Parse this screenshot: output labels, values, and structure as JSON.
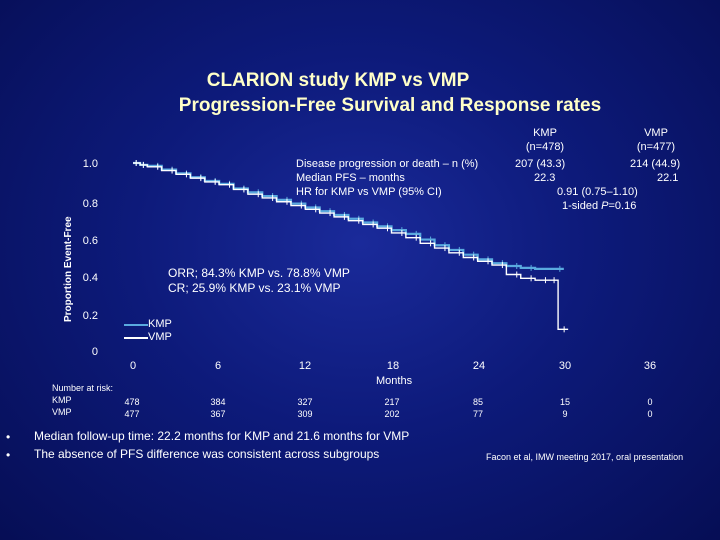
{
  "title_line1": "CLARION study KMP vs VMP",
  "title_line2": "Progression-Free Survival and Response rates",
  "table": {
    "kmp_header": "KMP",
    "kmp_n": "(n=478)",
    "vmp_header": "VMP",
    "vmp_n": "(n=477)",
    "row1_label": "Disease progression or death – n (%)",
    "row1_kmp": "207 (43.3)",
    "row1_vmp": "214 (44.9)",
    "row2_label": "Median PFS – months",
    "row2_kmp": "22.3",
    "row2_vmp": "22.1",
    "row3_label": "HR for KMP vs VMP (95% CI)",
    "row3_value": "0.91 (0.75–1.10)",
    "row4_pre": "1-sided ",
    "row4_p": "P",
    "row4_post": "=0.16"
  },
  "orr_text": "ORR; 84.3% KMP vs. 78.8% VMP",
  "cr_text": "CR; 25.9% KMP vs. 23.1% VMP",
  "risk": {
    "label": "Number at risk:",
    "kmp_label": "KMP",
    "vmp_label": "VMP",
    "kmp": [
      "478",
      "384",
      "327",
      "217",
      "85",
      "15",
      "0"
    ],
    "vmp": [
      "477",
      "367",
      "309",
      "202",
      "77",
      "9",
      "0"
    ]
  },
  "bullets": [
    "Median follow-up time: 22.2 months for KMP and 21.6 months  for VMP",
    "The absence of PFS difference was consistent across subgroups"
  ],
  "bullet_symbol": "•",
  "citation": "Facon et al, IMW meeting 2017, oral presentation",
  "colors": {
    "kmp": "#5aaadf",
    "vmp": "#ffffff",
    "title": "#ffffc8"
  },
  "chart_data": {
    "type": "line",
    "title": "",
    "xlabel": "Months",
    "ylabel": "Proportion Event-Free",
    "xlim": [
      0,
      36
    ],
    "ylim": [
      0,
      1.0
    ],
    "x_ticks": [
      0,
      6,
      12,
      18,
      24,
      30,
      36
    ],
    "y_ticks": [
      0,
      0.2,
      0.4,
      0.6,
      0.8,
      1.0
    ],
    "y_tick_labels": [
      "0",
      "0.2",
      "0.4",
      "0.6",
      "0.8",
      "1.0"
    ],
    "legend": [
      "KMP",
      "VMP"
    ],
    "legend_position": "bottom-left",
    "series": [
      {
        "name": "KMP",
        "x": [
          0,
          0.5,
          1,
          2,
          3,
          4,
          5,
          6,
          7,
          8,
          9,
          10,
          11,
          12,
          13,
          14,
          15,
          16,
          17,
          18,
          19,
          20,
          21,
          22,
          23,
          24,
          25,
          26,
          27,
          28,
          30
        ],
        "y": [
          1.0,
          0.99,
          0.985,
          0.965,
          0.945,
          0.925,
          0.905,
          0.89,
          0.865,
          0.845,
          0.825,
          0.805,
          0.785,
          0.765,
          0.745,
          0.725,
          0.705,
          0.685,
          0.665,
          0.645,
          0.625,
          0.595,
          0.565,
          0.54,
          0.515,
          0.49,
          0.47,
          0.455,
          0.445,
          0.44,
          0.44
        ]
      },
      {
        "name": "VMP",
        "x": [
          0,
          0.5,
          1,
          2,
          3,
          4,
          5,
          6,
          7,
          8,
          9,
          10,
          11,
          12,
          13,
          14,
          15,
          16,
          17,
          18,
          19,
          20,
          21,
          22,
          23,
          24,
          25,
          26,
          27,
          28,
          29,
          29.6,
          30.3
        ],
        "y": [
          1.0,
          0.99,
          0.98,
          0.96,
          0.94,
          0.92,
          0.9,
          0.885,
          0.86,
          0.835,
          0.815,
          0.795,
          0.775,
          0.755,
          0.735,
          0.715,
          0.695,
          0.675,
          0.655,
          0.63,
          0.605,
          0.575,
          0.55,
          0.525,
          0.5,
          0.48,
          0.46,
          0.41,
          0.39,
          0.38,
          0.38,
          0.12,
          0.12
        ]
      }
    ]
  }
}
